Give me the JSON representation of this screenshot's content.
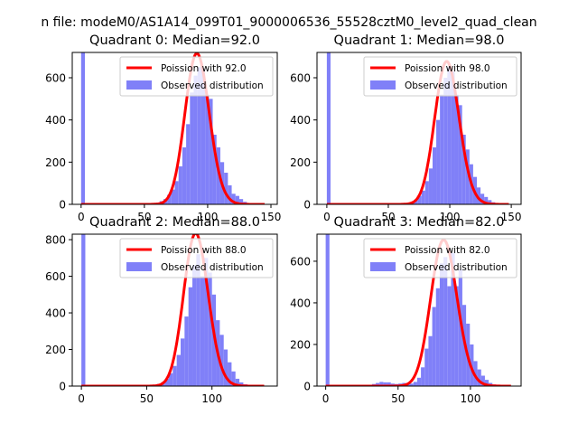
{
  "figure": {
    "suptitle": "n file: modeM0/AS1A14_099T01_9000006536_55528cztM0_level2_quad_clean"
  },
  "colors": {
    "bars": "#8080f8",
    "poisson": "#ff0000",
    "axes": "#000000",
    "background": "#ffffff"
  },
  "chart_data": [
    {
      "type": "bar",
      "title": "Quadrant 0: Median=92.0",
      "median": 92.0,
      "xlim": [
        -7,
        155
      ],
      "ylim": [
        0,
        720
      ],
      "xticks": [
        0,
        50,
        100,
        150
      ],
      "yticks": [
        0,
        200,
        400,
        600
      ],
      "bin_width": 3,
      "zero_bin_height": 720,
      "observed": [
        [
          50,
          3
        ],
        [
          53,
          2
        ],
        [
          56,
          4
        ],
        [
          59,
          8
        ],
        [
          62,
          15
        ],
        [
          65,
          25
        ],
        [
          68,
          45
        ],
        [
          71,
          70
        ],
        [
          74,
          110
        ],
        [
          77,
          180
        ],
        [
          80,
          270
        ],
        [
          83,
          380
        ],
        [
          86,
          530
        ],
        [
          89,
          610
        ],
        [
          92,
          650
        ],
        [
          95,
          640
        ],
        [
          98,
          520
        ],
        [
          101,
          500
        ],
        [
          104,
          330
        ],
        [
          107,
          270
        ],
        [
          110,
          200
        ],
        [
          113,
          150
        ],
        [
          116,
          90
        ],
        [
          119,
          50
        ],
        [
          122,
          40
        ],
        [
          125,
          25
        ],
        [
          128,
          12
        ],
        [
          131,
          6
        ],
        [
          134,
          3
        ]
      ],
      "poisson_x_max": 145,
      "legend": {
        "line": "Poission with 92.0",
        "bars": "Observed distribution",
        "position": "upper right"
      }
    },
    {
      "type": "bar",
      "title": "Quadrant 1: Median=98.0",
      "median": 98.0,
      "xlim": [
        -8,
        158
      ],
      "ylim": [
        0,
        720
      ],
      "xticks": [
        0,
        50,
        100,
        150
      ],
      "yticks": [
        0,
        200,
        400,
        600
      ],
      "bin_width": 3,
      "zero_bin_height": 720,
      "observed": [
        [
          56,
          3
        ],
        [
          59,
          2
        ],
        [
          62,
          4
        ],
        [
          65,
          6
        ],
        [
          68,
          12
        ],
        [
          71,
          22
        ],
        [
          74,
          40
        ],
        [
          77,
          65
        ],
        [
          80,
          110
        ],
        [
          83,
          170
        ],
        [
          86,
          270
        ],
        [
          89,
          400
        ],
        [
          92,
          520
        ],
        [
          95,
          600
        ],
        [
          98,
          650
        ],
        [
          101,
          630
        ],
        [
          104,
          520
        ],
        [
          107,
          470
        ],
        [
          110,
          330
        ],
        [
          113,
          260
        ],
        [
          116,
          190
        ],
        [
          119,
          130
        ],
        [
          122,
          80
        ],
        [
          125,
          50
        ],
        [
          128,
          35
        ],
        [
          131,
          20
        ],
        [
          134,
          10
        ],
        [
          137,
          5
        ],
        [
          140,
          3
        ]
      ],
      "poisson_x_max": 148,
      "legend": {
        "line": "Poission with 98.0",
        "bars": "Observed distribution",
        "position": "upper right"
      }
    },
    {
      "type": "bar",
      "title": "Quadrant 2: Median=88.0",
      "median": 88.0,
      "xlim": [
        -7,
        150
      ],
      "ylim": [
        0,
        830
      ],
      "xticks": [
        0,
        50,
        100
      ],
      "yticks": [
        0,
        200,
        400,
        600,
        800
      ],
      "bin_width": 3,
      "zero_bin_height": 830,
      "observed": [
        [
          46,
          3
        ],
        [
          49,
          2
        ],
        [
          52,
          5
        ],
        [
          55,
          8
        ],
        [
          58,
          12
        ],
        [
          61,
          20
        ],
        [
          64,
          40
        ],
        [
          67,
          70
        ],
        [
          70,
          110
        ],
        [
          73,
          170
        ],
        [
          76,
          260
        ],
        [
          79,
          380
        ],
        [
          82,
          540
        ],
        [
          85,
          660
        ],
        [
          88,
          720
        ],
        [
          91,
          600
        ],
        [
          94,
          700
        ],
        [
          97,
          620
        ],
        [
          100,
          500
        ],
        [
          103,
          360
        ],
        [
          106,
          280
        ],
        [
          109,
          200
        ],
        [
          112,
          130
        ],
        [
          115,
          80
        ],
        [
          118,
          40
        ],
        [
          121,
          20
        ],
        [
          124,
          10
        ],
        [
          127,
          5
        ]
      ],
      "poisson_x_max": 140,
      "legend": {
        "line": "Poission with 88.0",
        "bars": "Observed distribution",
        "position": "upper right"
      }
    },
    {
      "type": "bar",
      "title": "Quadrant 3: Median=82.0",
      "median": 82.0,
      "xlim": [
        -6,
        135
      ],
      "ylim": [
        0,
        730
      ],
      "xticks": [
        0,
        50,
        100
      ],
      "yticks": [
        0,
        200,
        400,
        600
      ],
      "bin_width": 2.6,
      "zero_bin_height": 730,
      "observed": [
        [
          32,
          10
        ],
        [
          34.6,
          15
        ],
        [
          37.2,
          20
        ],
        [
          39.8,
          18
        ],
        [
          42.4,
          18
        ],
        [
          45,
          12
        ],
        [
          47.6,
          10
        ],
        [
          50.2,
          12
        ],
        [
          52.8,
          15
        ],
        [
          55.4,
          10
        ],
        [
          58,
          12
        ],
        [
          60.6,
          20
        ],
        [
          63.2,
          40
        ],
        [
          65.8,
          90
        ],
        [
          68.4,
          180
        ],
        [
          71,
          240
        ],
        [
          73.6,
          380
        ],
        [
          76.2,
          470
        ],
        [
          78.8,
          590
        ],
        [
          81.4,
          620
        ],
        [
          84,
          480
        ],
        [
          86.6,
          640
        ],
        [
          89.2,
          480
        ],
        [
          91.8,
          560
        ],
        [
          94.4,
          390
        ],
        [
          97,
          300
        ],
        [
          99.6,
          200
        ],
        [
          102.2,
          120
        ],
        [
          104.8,
          80
        ],
        [
          107.4,
          50
        ],
        [
          110,
          30
        ],
        [
          112.6,
          15
        ],
        [
          115.2,
          8
        ],
        [
          117.8,
          4
        ]
      ],
      "poisson_x_max": 128,
      "legend": {
        "line": "Poission with 82.0",
        "bars": "Observed distribution",
        "position": "upper right"
      }
    }
  ]
}
